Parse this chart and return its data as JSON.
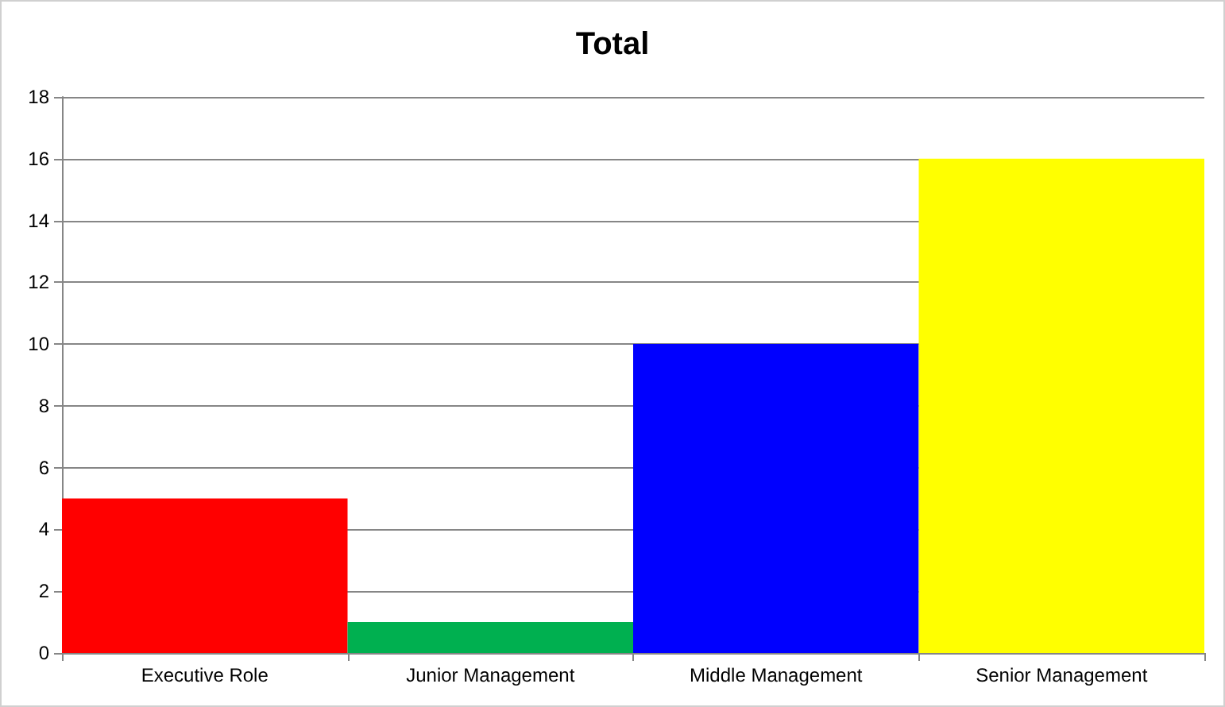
{
  "chart_data": {
    "type": "bar",
    "title": "Total",
    "categories": [
      "Executive Role",
      "Junior Management",
      "Middle Management",
      "Senior Management"
    ],
    "values": [
      5,
      1,
      10,
      16
    ],
    "colors": [
      "#ff0000",
      "#00b050",
      "#0000ff",
      "#ffff00"
    ],
    "ylim": [
      0,
      18
    ],
    "yticks": [
      0,
      2,
      4,
      6,
      8,
      10,
      12,
      14,
      16,
      18
    ],
    "grid": "y"
  }
}
